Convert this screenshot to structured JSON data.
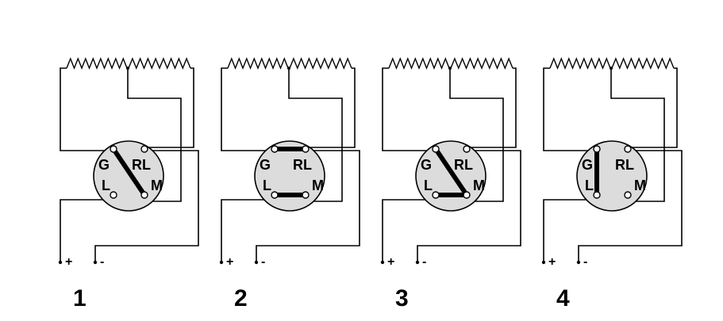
{
  "diagrams": [
    {
      "number": "1",
      "terminals": {
        "g": "G",
        "rl": "RL",
        "l": "L",
        "m": "M"
      },
      "supply": {
        "plus": "+",
        "minus": "-"
      },
      "connections": [
        [
          "G",
          "M"
        ]
      ]
    },
    {
      "number": "2",
      "terminals": {
        "g": "G",
        "rl": "RL",
        "l": "L",
        "m": "M"
      },
      "supply": {
        "plus": "+",
        "minus": "-"
      },
      "connections": [
        [
          "G",
          "RL"
        ],
        [
          "L",
          "M"
        ]
      ]
    },
    {
      "number": "3",
      "terminals": {
        "g": "G",
        "rl": "RL",
        "l": "L",
        "m": "M"
      },
      "supply": {
        "plus": "+",
        "minus": "-"
      },
      "connections": [
        [
          "G",
          "M"
        ],
        [
          "L",
          "M"
        ]
      ]
    },
    {
      "number": "4",
      "terminals": {
        "g": "G",
        "rl": "RL",
        "l": "L",
        "m": "M"
      },
      "supply": {
        "plus": "+",
        "minus": "-"
      },
      "connections": [
        [
          "G",
          "L"
        ]
      ]
    }
  ]
}
